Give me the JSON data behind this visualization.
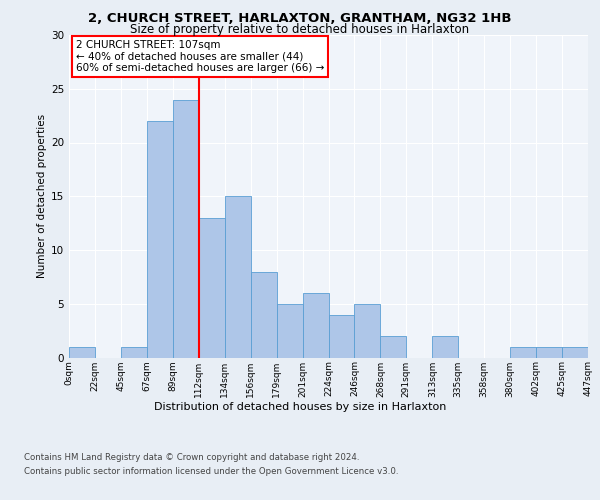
{
  "title1": "2, CHURCH STREET, HARLAXTON, GRANTHAM, NG32 1HB",
  "title2": "Size of property relative to detached houses in Harlaxton",
  "xlabel": "Distribution of detached houses by size in Harlaxton",
  "ylabel": "Number of detached properties",
  "bin_labels": [
    "0sqm",
    "22sqm",
    "45sqm",
    "67sqm",
    "89sqm",
    "112sqm",
    "134sqm",
    "156sqm",
    "179sqm",
    "201sqm",
    "224sqm",
    "246sqm",
    "268sqm",
    "291sqm",
    "313sqm",
    "335sqm",
    "358sqm",
    "380sqm",
    "402sqm",
    "425sqm",
    "447sqm"
  ],
  "bar_values": [
    1,
    0,
    1,
    22,
    24,
    13,
    15,
    8,
    5,
    6,
    4,
    5,
    2,
    0,
    2,
    0,
    0,
    1,
    1,
    1
  ],
  "bar_color": "#aec6e8",
  "bar_edge_color": "#5a9fd4",
  "vline_x_index": 4,
  "vline_color": "red",
  "annotation_text": "2 CHURCH STREET: 107sqm\n← 40% of detached houses are smaller (44)\n60% of semi-detached houses are larger (66) →",
  "annotation_box_color": "white",
  "annotation_box_edge": "red",
  "ylim": [
    0,
    30
  ],
  "yticks": [
    0,
    5,
    10,
    15,
    20,
    25,
    30
  ],
  "footer1": "Contains HM Land Registry data © Crown copyright and database right 2024.",
  "footer2": "Contains public sector information licensed under the Open Government Licence v3.0.",
  "bg_color": "#e8eef5",
  "plot_bg_color": "#f0f4fa"
}
